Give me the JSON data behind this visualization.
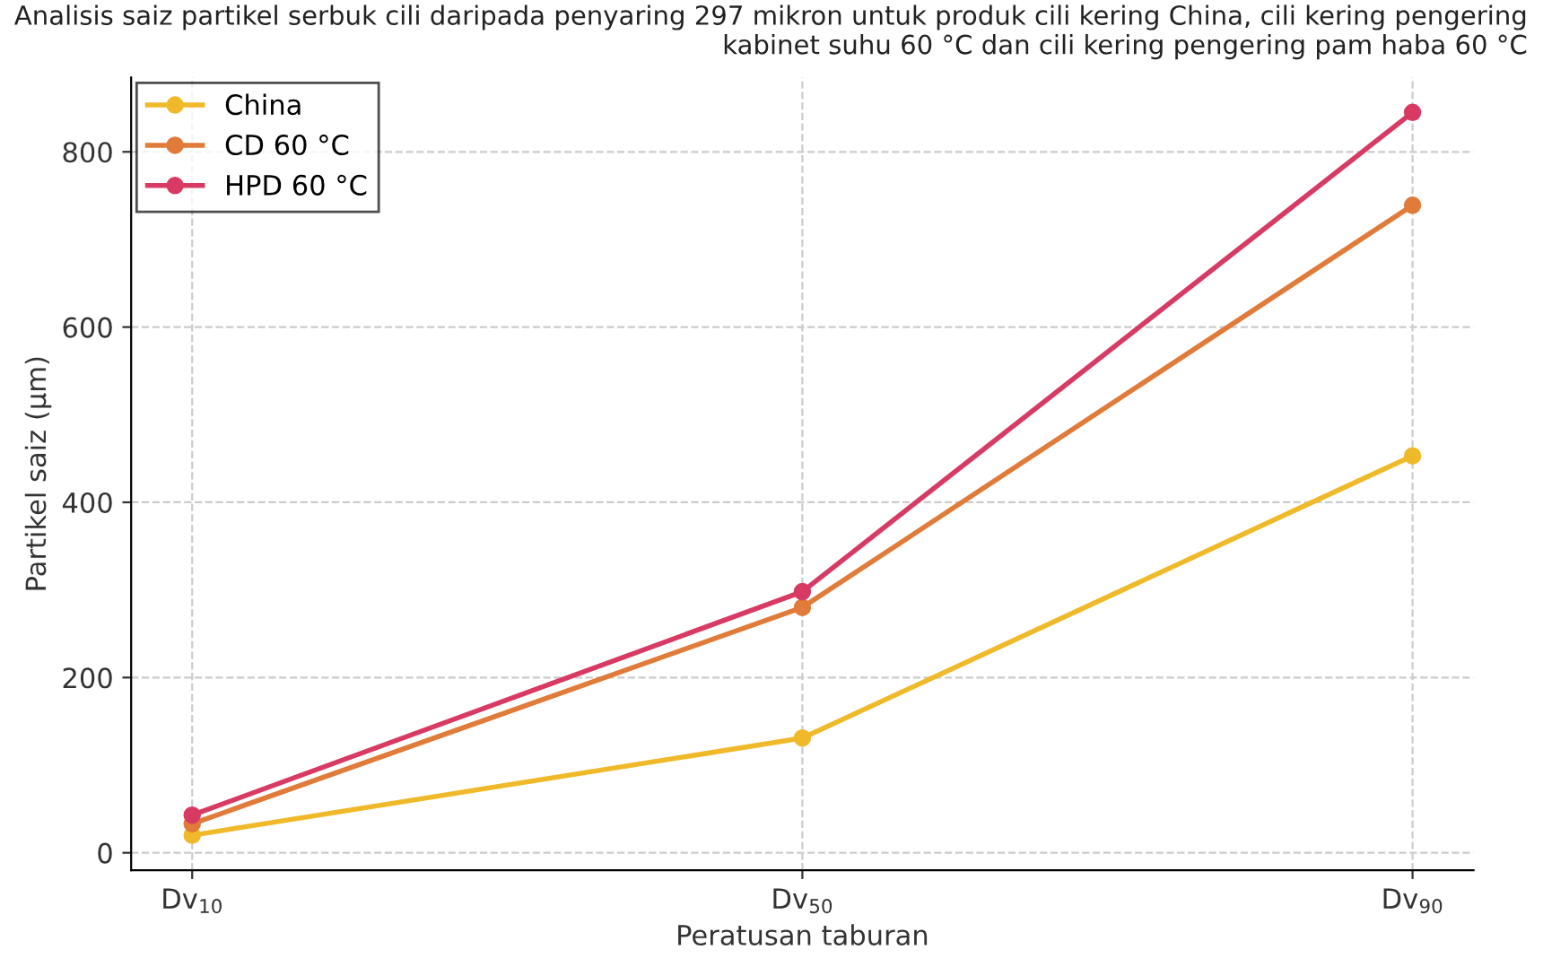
{
  "chart_data": {
    "type": "line",
    "title": "Analisis saiz partikel serbuk cili daripada penyaring 297 mikron untuk produk cili kering China, cili kering pengering kabinet suhu 60 °C dan cili kering pengering pam haba 60 °C",
    "xlabel": "Peratusan taburan",
    "ylabel": "Partikel saiz (µm)",
    "categories": [
      "Dv$_{10}$",
      "Dv$_{50}$",
      "Dv$_{90}$"
    ],
    "series": [
      {
        "name": "China",
        "color": "#f0b92a",
        "values": [
          20,
          131,
          453
        ]
      },
      {
        "name": "CD 60 °C",
        "color": "#e07b39",
        "values": [
          33,
          280,
          739
        ]
      },
      {
        "name": "HPD 60 °C",
        "color": "#d83a63",
        "values": [
          43,
          298,
          845
        ]
      }
    ],
    "ylim": [
      -20,
      885
    ],
    "yticks": [
      0,
      200,
      400,
      600,
      800
    ],
    "grid": true,
    "legend": "top left",
    "marker": "circle",
    "line_style": "solid"
  }
}
